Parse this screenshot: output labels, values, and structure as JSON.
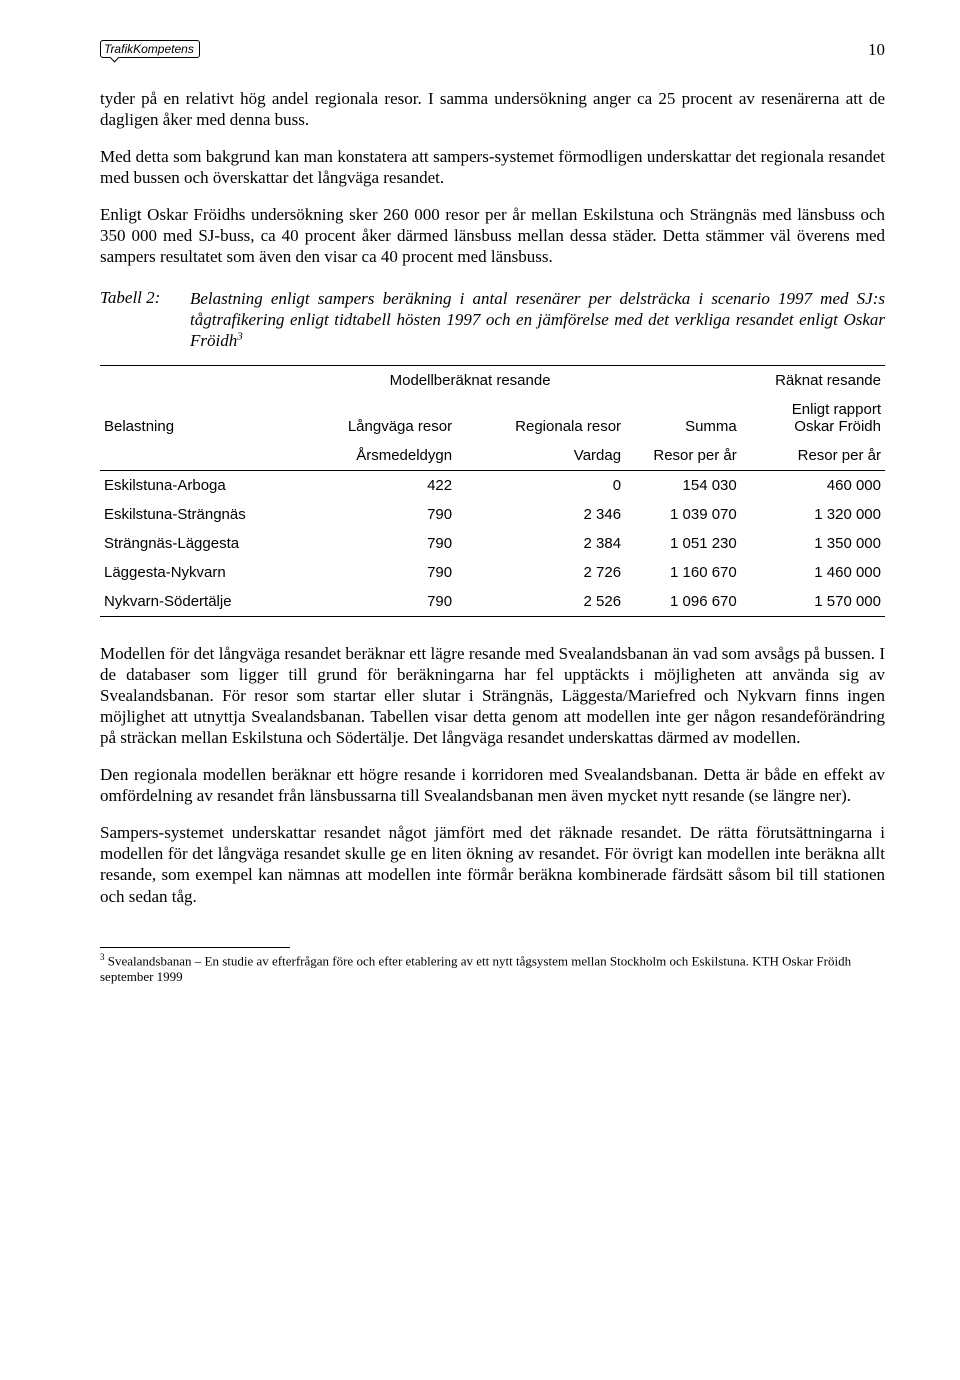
{
  "header": {
    "logo": "TrafikKompetens",
    "page_number": "10"
  },
  "paragraphs": {
    "p1": "tyder på en relativt hög andel regionala resor. I samma undersökning anger ca 25 procent av resenärerna att de dagligen åker med denna buss.",
    "p2": "Med detta som bakgrund kan man konstatera att sampers-systemet förmodligen underskattar det regionala resandet med bussen och överskattar det långväga resandet.",
    "p3": "Enligt Oskar Fröidhs undersökning sker 260 000 resor per år mellan Eskilstuna och Strängnäs med länsbuss och 350 000 med SJ-buss, ca 40 procent åker därmed länsbuss mellan dessa städer. Detta stämmer väl överens med sampers resultatet som även den visar ca 40 procent med länsbuss.",
    "p4": "Modellen för det långväga resandet beräknar ett lägre resande med Svealandsbanan än vad som avsågs på bussen. I de databaser som ligger till grund för beräkningarna har fel upptäckts i möjligheten att använda sig av Svealandsbanan. För resor som startar eller slutar i Strängnäs, Läggesta/Mariefred och Nykvarn finns ingen möjlighet att utnyttja Svealandsbanan. Tabellen visar detta genom att modellen inte ger någon resandeförändring på sträckan mellan Eskilstuna och Södertälje. Det långväga resandet underskattas därmed av modellen.",
    "p5": "Den regionala modellen beräknar ett högre resande i korridoren med Svealandsbanan. Detta är både en effekt av omfördelning av resandet från länsbussarna till Svealandsbanan men även mycket nytt resande (se längre ner).",
    "p6": "Sampers-systemet underskattar resandet något jämfört med det räknade resandet. De rätta förutsättningarna i modellen för det långväga resandet skulle ge en liten ökning av resandet. För övrigt kan modellen inte beräkna allt resande, som exempel kan nämnas att modellen inte förmår beräkna kombinerade färdsätt såsom bil till stationen och sedan tåg."
  },
  "table_caption": {
    "label": "Tabell 2:",
    "text": "Belastning enligt sampers beräkning i antal resenärer per delsträcka i scenario 1997 med SJ:s tågtrafikering enligt tidtabell hösten 1997 och en jämförelse med det verkliga resandet enligt Oskar Fröidh",
    "sup": "3"
  },
  "table": {
    "group_headers": {
      "model": "Modellberäknat resande",
      "counted": "Räknat resande"
    },
    "col_headers": {
      "belastning": "Belastning",
      "langvaga": "Långväga resor",
      "regionala": "Regionala resor",
      "summa": "Summa",
      "enligt_rapport_1": "Enligt rapport",
      "enligt_rapport_2": "Oskar Fröidh"
    },
    "sub_headers": {
      "arsmedel": "Årsmedeldygn",
      "vardag": "Vardag",
      "resor1": "Resor per år",
      "resor2": "Resor per år"
    },
    "rows": [
      {
        "name": "Eskilstuna-Arboga",
        "c1": "422",
        "c2": "0",
        "c3": "154 030",
        "c4": "460 000"
      },
      {
        "name": "Eskilstuna-Strängnäs",
        "c1": "790",
        "c2": "2 346",
        "c3": "1 039 070",
        "c4": "1 320 000"
      },
      {
        "name": "Strängnäs-Läggesta",
        "c1": "790",
        "c2": "2 384",
        "c3": "1 051 230",
        "c4": "1 350 000"
      },
      {
        "name": "Läggesta-Nykvarn",
        "c1": "790",
        "c2": "2 726",
        "c3": "1 160 670",
        "c4": "1 460 000"
      },
      {
        "name": "Nykvarn-Södertälje",
        "c1": "790",
        "c2": "2 526",
        "c3": "1 096 670",
        "c4": "1 570 000"
      }
    ]
  },
  "footnote": {
    "marker": "3",
    "text": " Svealandsbanan – En studie av efterfrågan före och efter etablering av ett nytt tågsystem mellan Stockholm och Eskilstuna. KTH Oskar Fröidh september 1999"
  }
}
